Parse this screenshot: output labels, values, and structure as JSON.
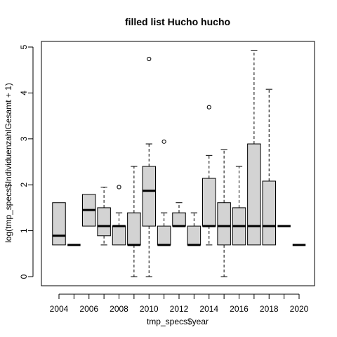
{
  "chart_data": {
    "type": "boxplot",
    "title": "filled list Hucho hucho",
    "xlabel": "tmp_specs$year",
    "ylabel": "log(tmp_specs$IndividuenzahlGesamt + 1)",
    "ylim": [
      0,
      5
    ],
    "yticks": [
      0,
      1,
      2,
      3,
      4,
      5
    ],
    "categories": [
      "2004",
      "2005",
      "2006",
      "2007",
      "2008",
      "2009",
      "2010",
      "2011",
      "2012",
      "2013",
      "2014",
      "2015",
      "2016",
      "2017",
      "2018",
      "2019",
      "2020"
    ],
    "x_tick_labels_shown": [
      "2004",
      "2006",
      "2008",
      "2010",
      "2012",
      "2014",
      "2016",
      "2018",
      "2020"
    ],
    "boxes": [
      {
        "year": "2004",
        "whisker_low": 0.69,
        "q1": 0.69,
        "median": 0.89,
        "q3": 1.61,
        "whisker_high": 1.61,
        "outliers": []
      },
      {
        "year": "2005",
        "whisker_low": 0.69,
        "q1": 0.69,
        "median": 0.69,
        "q3": 0.69,
        "whisker_high": 0.69,
        "outliers": []
      },
      {
        "year": "2006",
        "whisker_low": 1.1,
        "q1": 1.1,
        "median": 1.45,
        "q3": 1.79,
        "whisker_high": 1.79,
        "outliers": []
      },
      {
        "year": "2007",
        "whisker_low": 0.69,
        "q1": 0.89,
        "median": 1.1,
        "q3": 1.5,
        "whisker_high": 1.95,
        "outliers": []
      },
      {
        "year": "2008",
        "whisker_low": 0.69,
        "q1": 0.69,
        "median": 1.1,
        "q3": 1.1,
        "whisker_high": 1.39,
        "outliers": [
          1.95
        ]
      },
      {
        "year": "2009",
        "whisker_low": 0.0,
        "q1": 0.69,
        "median": 0.69,
        "q3": 1.39,
        "whisker_high": 2.4,
        "outliers": []
      },
      {
        "year": "2010",
        "whisker_low": 0.0,
        "q1": 1.1,
        "median": 1.87,
        "q3": 2.4,
        "whisker_high": 2.89,
        "outliers": [
          4.74
        ]
      },
      {
        "year": "2011",
        "whisker_low": 0.69,
        "q1": 0.69,
        "median": 0.69,
        "q3": 1.1,
        "whisker_high": 1.39,
        "outliers": [
          2.94
        ]
      },
      {
        "year": "2012",
        "whisker_low": 1.1,
        "q1": 1.1,
        "median": 1.1,
        "q3": 1.39,
        "whisker_high": 1.61,
        "outliers": []
      },
      {
        "year": "2013",
        "whisker_low": 0.69,
        "q1": 0.69,
        "median": 0.69,
        "q3": 1.1,
        "whisker_high": 1.39,
        "outliers": []
      },
      {
        "year": "2014",
        "whisker_low": 0.69,
        "q1": 1.1,
        "median": 1.1,
        "q3": 2.14,
        "whisker_high": 2.64,
        "outliers": [
          3.69
        ]
      },
      {
        "year": "2015",
        "whisker_low": 0.0,
        "q1": 0.69,
        "median": 1.1,
        "q3": 1.61,
        "whisker_high": 2.77,
        "outliers": []
      },
      {
        "year": "2016",
        "whisker_low": 0.69,
        "q1": 0.69,
        "median": 1.1,
        "q3": 1.5,
        "whisker_high": 2.4,
        "outliers": []
      },
      {
        "year": "2017",
        "whisker_low": 0.69,
        "q1": 0.69,
        "median": 1.1,
        "q3": 2.89,
        "whisker_high": 4.93,
        "outliers": []
      },
      {
        "year": "2018",
        "whisker_low": 0.69,
        "q1": 0.69,
        "median": 1.1,
        "q3": 2.08,
        "whisker_high": 4.08,
        "outliers": []
      },
      {
        "year": "2019",
        "whisker_low": 1.1,
        "q1": 1.1,
        "median": 1.1,
        "q3": 1.1,
        "whisker_high": 1.1,
        "outliers": []
      },
      {
        "year": "2020",
        "whisker_low": 0.69,
        "q1": 0.69,
        "median": 0.69,
        "q3": 0.69,
        "whisker_high": 0.69,
        "outliers": []
      }
    ],
    "box_fill": "#d3d3d3",
    "line_color": "#000000",
    "grid": false
  }
}
